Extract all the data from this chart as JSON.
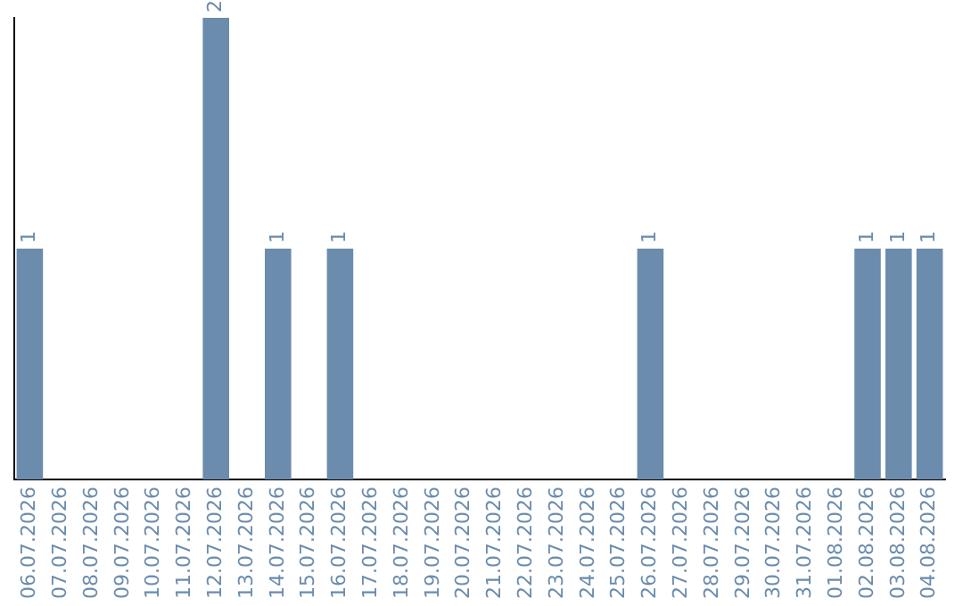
{
  "chart_data": {
    "type": "bar",
    "categories": [
      "06.07.2026",
      "07.07.2026",
      "08.07.2026",
      "09.07.2026",
      "10.07.2026",
      "11.07.2026",
      "12.07.2026",
      "13.07.2026",
      "14.07.2026",
      "15.07.2026",
      "16.07.2026",
      "17.07.2026",
      "18.07.2026",
      "19.07.2026",
      "20.07.2026",
      "21.07.2026",
      "22.07.2026",
      "23.07.2026",
      "24.07.2026",
      "25.07.2026",
      "26.07.2026",
      "27.07.2026",
      "28.07.2026",
      "29.07.2026",
      "30.07.2026",
      "31.07.2026",
      "01.08.2026",
      "02.08.2026",
      "03.08.2026",
      "04.08.2026"
    ],
    "values": [
      1,
      0,
      0,
      0,
      0,
      0,
      2,
      0,
      1,
      0,
      1,
      0,
      0,
      0,
      0,
      0,
      0,
      0,
      0,
      0,
      1,
      0,
      0,
      0,
      0,
      0,
      0,
      1,
      1,
      1
    ],
    "value_labels": [
      "1",
      null,
      null,
      null,
      null,
      null,
      "2",
      null,
      "1",
      null,
      "1",
      null,
      null,
      null,
      null,
      null,
      null,
      null,
      null,
      null,
      "1",
      null,
      null,
      null,
      null,
      null,
      null,
      "1",
      "1",
      "1"
    ],
    "color": "#6b8cac",
    "grid": false,
    "legend": false,
    "tick_labels": "x"
  }
}
